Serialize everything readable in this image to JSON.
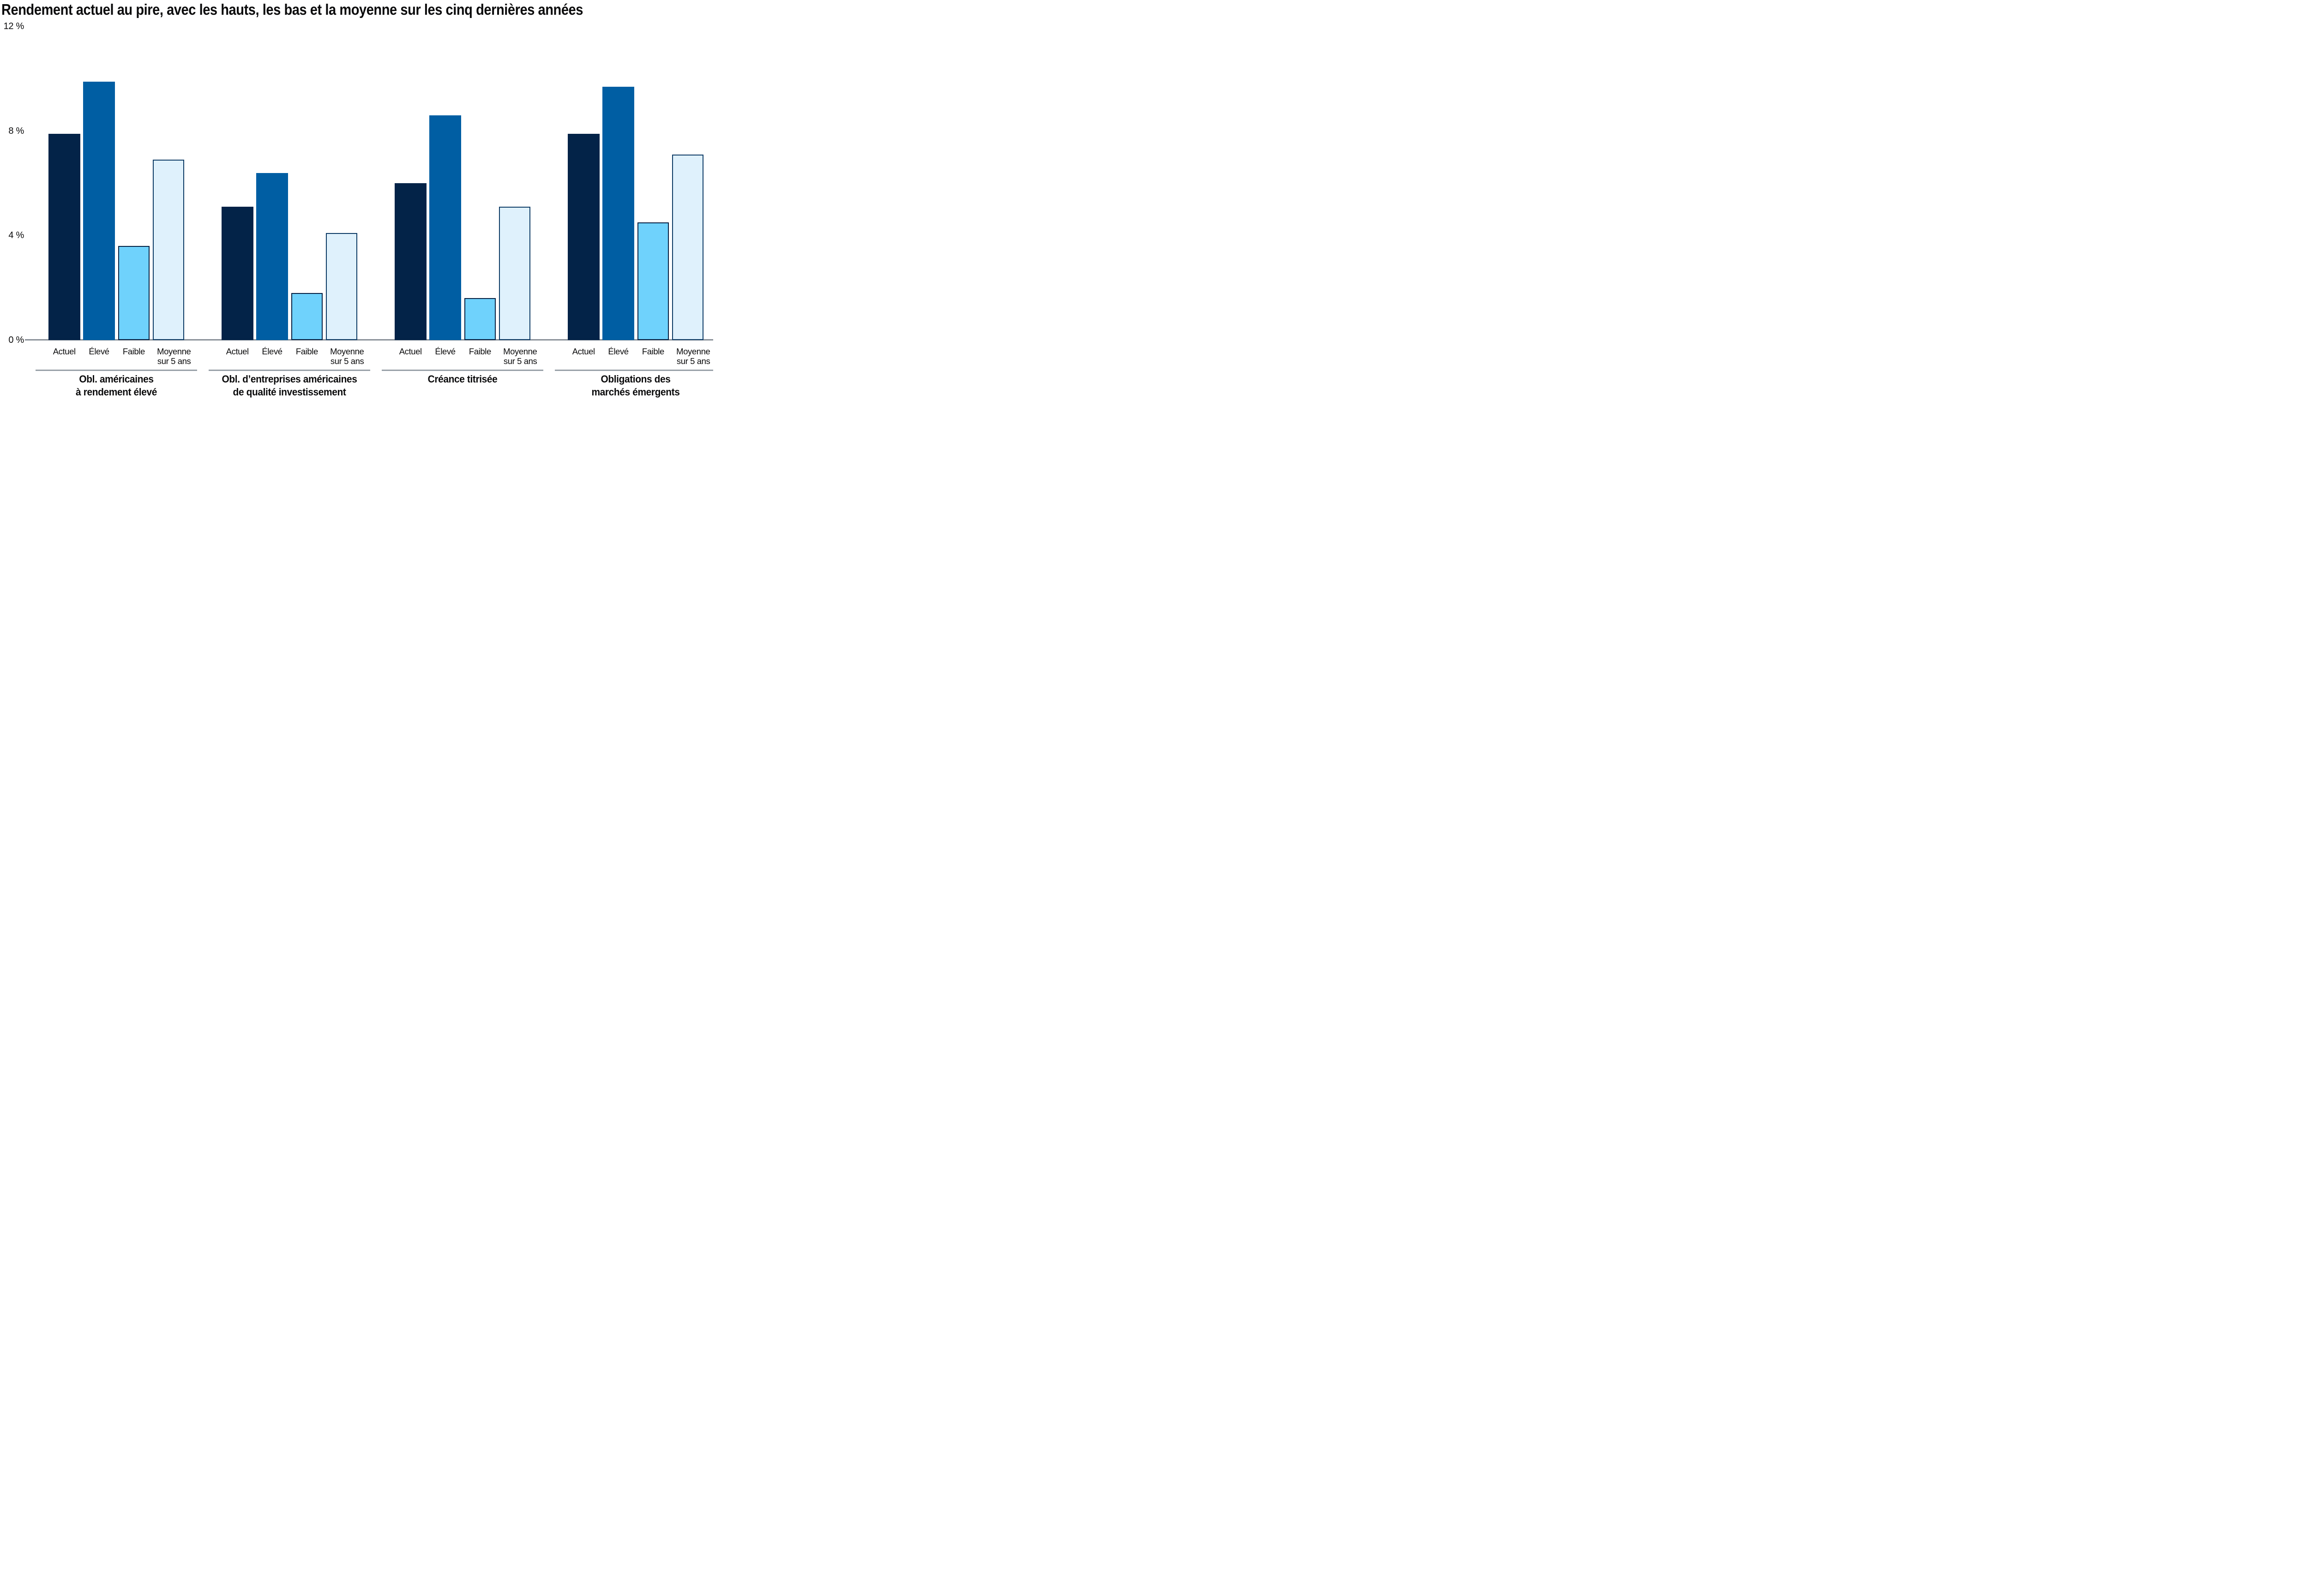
{
  "chart_data": {
    "type": "bar",
    "title": "Rendement actuel au pire, avec les hauts, les bas et la moyenne sur les cinq dernières années",
    "unit": "%",
    "grid": false,
    "legend_position": "none",
    "background": "#FFFFFF",
    "text_color": "#0B0B0C",
    "axis_line_color": "#8A9199",
    "separator_color": "#99A1A8",
    "y_axis": {
      "min": 0,
      "max": 12,
      "ticks": [
        {
          "label": "12 %",
          "value": 12
        },
        {
          "label": "8 %",
          "value": 8
        },
        {
          "label": "4 %",
          "value": 4
        },
        {
          "label": "0 %",
          "value": 0
        }
      ]
    },
    "series": [
      {
        "key": "actuel",
        "label": "Actuel",
        "color": "#032348"
      },
      {
        "key": "eleve",
        "label": "Élevé",
        "color": "#005EA3"
      },
      {
        "key": "faible",
        "label": "Faible",
        "color": "#6FD2FC",
        "border": "#062143"
      },
      {
        "key": "moyenne",
        "label": "Moyenne",
        "label_line2": "sur 5 ans",
        "color": "#DFF1FC",
        "border": "#0E3C66"
      }
    ],
    "groups": [
      {
        "label_line1": "Obl. américaines",
        "label_line2": "à rendement élevé",
        "values": [
          7.9,
          9.9,
          3.6,
          6.9
        ]
      },
      {
        "label_line1": "Obl. d’entreprises américaines",
        "label_line2": "de qualité investissement",
        "values": [
          5.1,
          6.4,
          1.8,
          4.1
        ]
      },
      {
        "label_line1": "Créance titrisée",
        "label_line2": "",
        "values": [
          6.0,
          8.6,
          1.6,
          5.1
        ]
      },
      {
        "label_line1": "Obligations des",
        "label_line2": "marchés émergents",
        "values": [
          7.9,
          9.7,
          4.5,
          7.1
        ]
      }
    ]
  }
}
